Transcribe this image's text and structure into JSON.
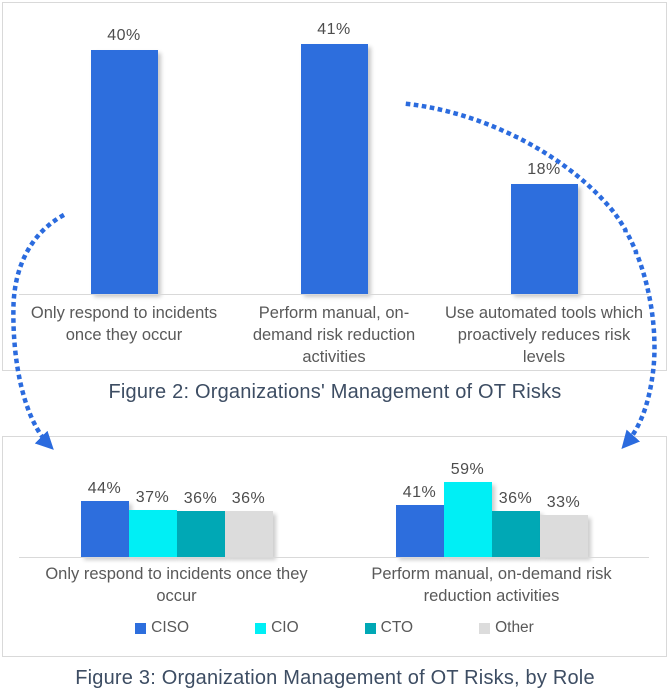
{
  "chart_data": [
    {
      "id": "figure2",
      "type": "bar",
      "title": "Figure 2: Organizations' Management of OT Risks",
      "categories": [
        "Only respond to incidents once they occur",
        "Perform manual, on-demand risk reduction activities",
        "Use automated tools which proactively reduces risk levels"
      ],
      "values": [
        40,
        41,
        18
      ],
      "value_labels": [
        "40%",
        "41%",
        "18%"
      ],
      "bar_color": "#2D6EDD",
      "xlabel": "",
      "ylabel": "",
      "ylim": [
        0,
        45
      ],
      "grid": false,
      "legend": null
    },
    {
      "id": "figure3",
      "type": "grouped-bar",
      "title": "Figure 3: Organization Management of OT Risks, by Role",
      "categories": [
        "Only respond to incidents once they occur",
        "Perform manual, on-demand risk reduction activities"
      ],
      "series": [
        {
          "name": "CISO",
          "color": "#2D6EDD",
          "values": [
            44,
            41
          ],
          "value_labels": [
            "44%",
            "41%"
          ]
        },
        {
          "name": "CIO",
          "color": "#00EFF5",
          "values": [
            37,
            59
          ],
          "value_labels": [
            "37%",
            "59%"
          ]
        },
        {
          "name": "CTO",
          "color": "#00A8B5",
          "values": [
            36,
            36
          ],
          "value_labels": [
            "36%",
            "36%"
          ]
        },
        {
          "name": "Other",
          "color": "#DCDCDC",
          "values": [
            36,
            33
          ],
          "value_labels": [
            "36%",
            "33%"
          ]
        }
      ],
      "xlabel": "",
      "ylabel": "",
      "ylim": [
        0,
        65
      ],
      "grid": false,
      "legend_position": "bottom"
    }
  ],
  "colors": {
    "arrow_blue": "#2B6BDE",
    "panel_border": "#d9d9d9",
    "axis_line": "#d9d9d9",
    "caption_text": "#3d4d63",
    "category_text": "#595959",
    "value_text": "#4d4d4d"
  }
}
